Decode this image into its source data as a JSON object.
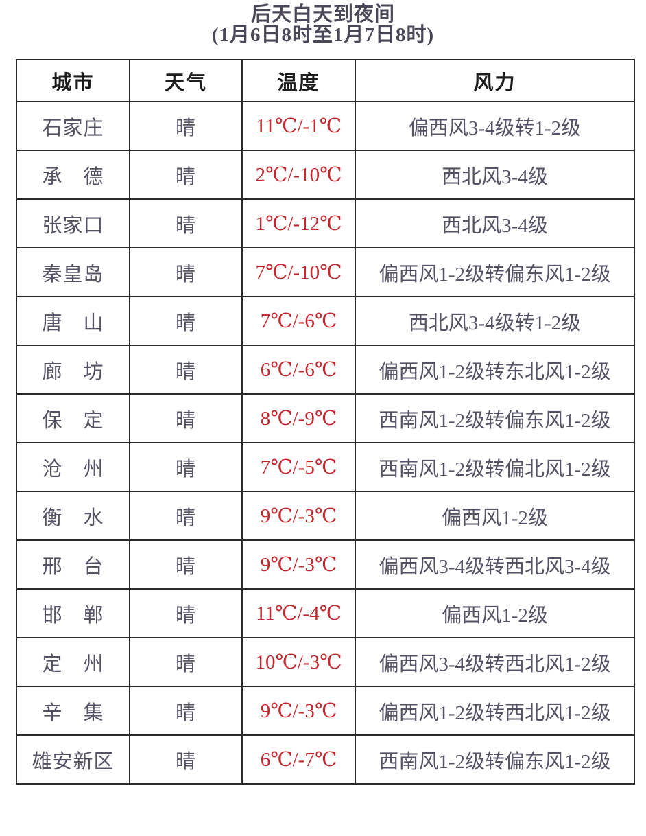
{
  "page": {
    "title": "后天白天到夜间",
    "subtitle": "(1月6日8时至1月7日8时)"
  },
  "colors": {
    "title_text": "#4c4758",
    "header_text": "#1d1d1d",
    "body_text": "#565164",
    "temperature_text": "#c4282e",
    "border": "#2b2b2b",
    "background": "#ffffff"
  },
  "table": {
    "columns": [
      "城市",
      "天气",
      "温度",
      "风力"
    ],
    "rows": [
      {
        "city": "石家庄",
        "weather": "晴",
        "temp": "11℃/-1℃",
        "wind": "偏西风3-4级转1-2级"
      },
      {
        "city": "承　德",
        "weather": "晴",
        "temp": "2℃/-10℃",
        "wind": "西北风3-4级"
      },
      {
        "city": "张家口",
        "weather": "晴",
        "temp": "1℃/-12℃",
        "wind": "西北风3-4级"
      },
      {
        "city": "秦皇岛",
        "weather": "晴",
        "temp": "7℃/-10℃",
        "wind": "偏西风1-2级转偏东风1-2级"
      },
      {
        "city": "唐　山",
        "weather": "晴",
        "temp": "7℃/-6℃",
        "wind": "西北风3-4级转1-2级"
      },
      {
        "city": "廊　坊",
        "weather": "晴",
        "temp": "6℃/-6℃",
        "wind": "偏西风1-2级转东北风1-2级"
      },
      {
        "city": "保　定",
        "weather": "晴",
        "temp": "8℃/-9℃",
        "wind": "西南风1-2级转偏东风1-2级"
      },
      {
        "city": "沧　州",
        "weather": "晴",
        "temp": "7℃/-5℃",
        "wind": "西南风1-2级转偏北风1-2级"
      },
      {
        "city": "衡　水",
        "weather": "晴",
        "temp": "9℃/-3℃",
        "wind": "偏西风1-2级"
      },
      {
        "city": "邢　台",
        "weather": "晴",
        "temp": "9℃/-3℃",
        "wind": "偏西风3-4级转西北风3-4级"
      },
      {
        "city": "邯　郸",
        "weather": "晴",
        "temp": "11℃/-4℃",
        "wind": "偏西风1-2级"
      },
      {
        "city": "定　州",
        "weather": "晴",
        "temp": "10℃/-3℃",
        "wind": "偏西风3-4级转西北风1-2级"
      },
      {
        "city": "辛　集",
        "weather": "晴",
        "temp": "9℃/-3℃",
        "wind": "偏西风1-2级转西北风1-2级"
      },
      {
        "city": "雄安新区",
        "weather": "晴",
        "temp": "6℃/-7℃",
        "wind": "西南风1-2级转偏东风1-2级"
      }
    ]
  }
}
